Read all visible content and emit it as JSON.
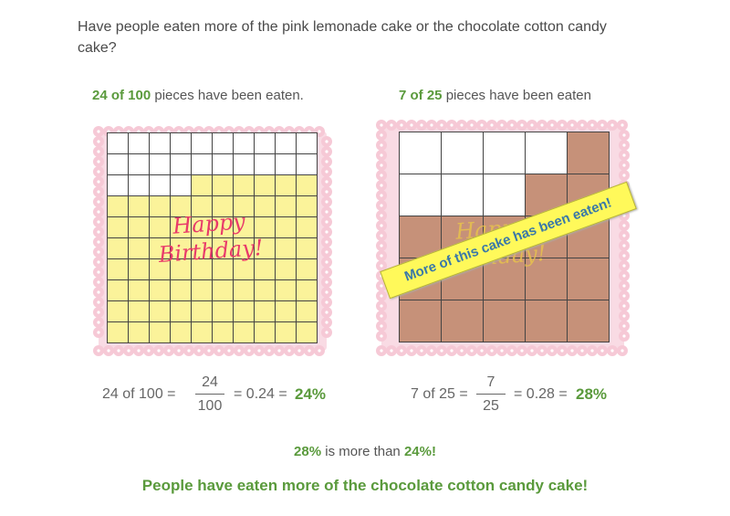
{
  "question": "Have people eaten more of the pink lemonade cake or the chocolate cotton candy cake?",
  "cake1": {
    "caption_count": "24 of 100",
    "caption_rest": " pieces have been eaten.",
    "total_pieces": 100,
    "eaten_pieces": 24,
    "writing_line1": "Happy",
    "writing_line2": "Birthday!",
    "eq_left": "24 of 100 =",
    "frac_num": "24",
    "frac_den": "100",
    "eq_mid": "= 0.24 =",
    "percent": "24%"
  },
  "cake2": {
    "caption_count": "7 of 25",
    "caption_rest": " pieces have been eaten",
    "total_pieces": 25,
    "eaten_pieces": 7,
    "writing_line1": "Happy",
    "writing_line2": "Birthday!",
    "banner": "More of this cake has been eaten!",
    "eq_left": "7 of 25 =",
    "frac_num": "7",
    "frac_den": "25",
    "eq_mid": "= 0.28 =",
    "percent": "28%"
  },
  "comparison": {
    "a": "28%",
    "middle": " is more than ",
    "b": "24%!"
  },
  "conclusion": "People have eaten more of the chocolate cotton candy cake!",
  "colors": {
    "accent_green": "#5a9a3c",
    "lemonade_yellow": "#fbf39a",
    "chocolate_brown": "#c69179",
    "plate_pink": "#f6c9d6",
    "banner_yellow": "#fff95a"
  }
}
